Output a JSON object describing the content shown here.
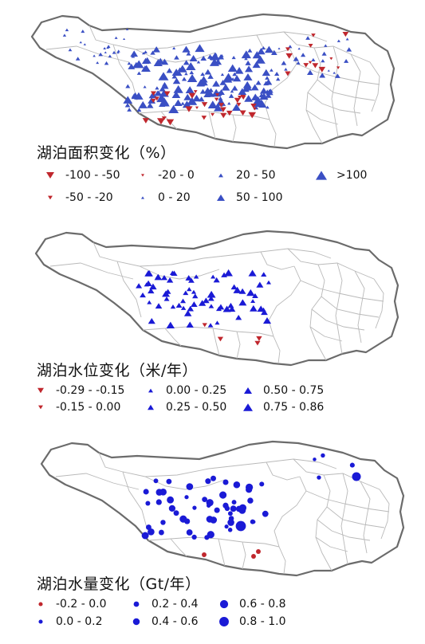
{
  "colors": {
    "decrease": "#c0272d",
    "increase_area": "#3a4fc4",
    "increase": "#1a1ad6",
    "outline": "#6b6b6b",
    "basin": "#b9b9b9"
  },
  "panels": [
    {
      "id": "area",
      "title": "湖泊面积变化（%）",
      "legend": [
        {
          "label": "-100 - -50",
          "symbol": "triangle-down",
          "size": 5,
          "color": "decrease"
        },
        {
          "label": "-20 - 0",
          "symbol": "triangle-down",
          "size": 2,
          "color": "decrease"
        },
        {
          "label": "20 - 50",
          "symbol": "triangle-up",
          "size": 3,
          "color": "increase_area"
        },
        {
          "label": ">100",
          "symbol": "triangle-up",
          "size": 7,
          "color": "increase_area"
        },
        {
          "label": "-50 - -20",
          "symbol": "triangle-down",
          "size": 3,
          "color": "decrease"
        },
        {
          "label": "0 - 20",
          "symbol": "triangle-up",
          "size": 2,
          "color": "increase_area"
        },
        {
          "label": "50 - 100",
          "symbol": "triangle-up",
          "size": 5,
          "color": "increase_area"
        }
      ]
    },
    {
      "id": "level",
      "title": "湖泊水位变化（米/年）",
      "legend": [
        {
          "label": "-0.29 - -0.15",
          "symbol": "triangle-down",
          "size": 4,
          "color": "decrease"
        },
        {
          "label": "0.00 - 0.25",
          "symbol": "triangle-up",
          "size": 3,
          "color": "increase"
        },
        {
          "label": "0.50 - 0.75",
          "symbol": "triangle-up",
          "size": 5,
          "color": "increase"
        },
        {
          "label": "-0.15 - 0.00",
          "symbol": "triangle-down",
          "size": 3,
          "color": "decrease"
        },
        {
          "label": "0.25 - 0.50",
          "symbol": "triangle-up",
          "size": 4,
          "color": "increase"
        },
        {
          "label": "0.75 - 0.86",
          "symbol": "triangle-up",
          "size": 6,
          "color": "increase"
        }
      ]
    },
    {
      "id": "mass",
      "title": "湖泊水量变化（Gt/年）",
      "legend": [
        {
          "label": "-0.2 - 0.0",
          "symbol": "circle",
          "size": 3,
          "color": "decrease"
        },
        {
          "label": "0.2 - 0.4",
          "symbol": "circle",
          "size": 4,
          "color": "increase"
        },
        {
          "label": "0.6 - 0.8",
          "symbol": "circle",
          "size": 6,
          "color": "increase"
        },
        {
          "label": "0.0 - 0.2",
          "symbol": "circle",
          "size": 3,
          "color": "increase"
        },
        {
          "label": "0.4 - 0.6",
          "symbol": "circle",
          "size": 5,
          "color": "increase"
        },
        {
          "label": "0.8 - 1.0",
          "symbol": "circle",
          "size": 7,
          "color": "increase"
        }
      ]
    }
  ]
}
